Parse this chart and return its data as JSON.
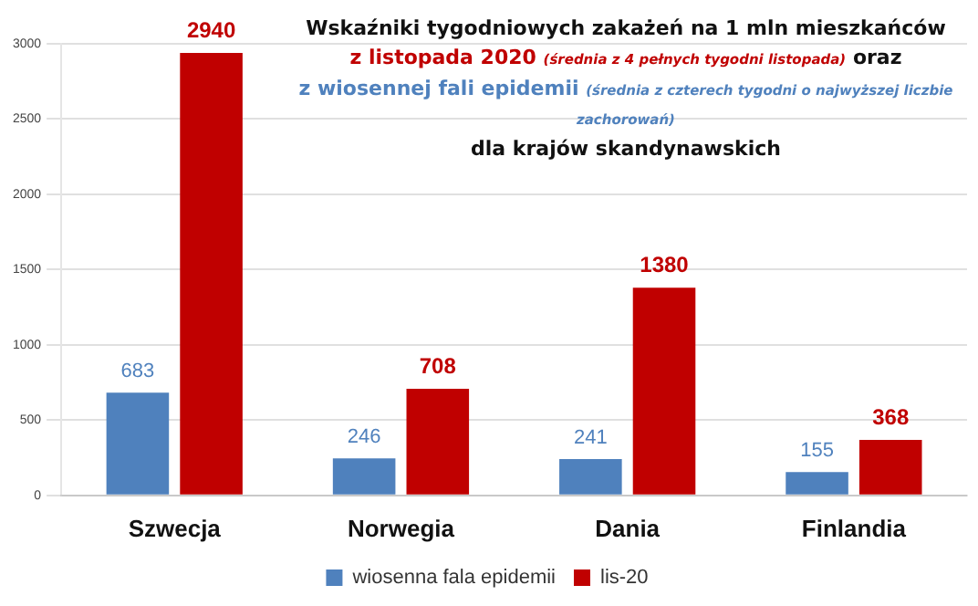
{
  "chart_data": {
    "type": "bar",
    "title": "Wskaźniki tygodniowych zakażeń na 1 mln mieszkańców",
    "subtitle": "z listopada 2020 (średnia z 4 pełnych tygodni listopada) oraz",
    "annotations": [
      "z wiosennej fali epidemii (średnia z czterech tygodni o najwyższej liczbie zachorowań)",
      "dla krajów skandynawskich"
    ],
    "categories": [
      "Szwecja",
      "Norwegia",
      "Dania",
      "Finlandia"
    ],
    "series": [
      {
        "name": "wiosenna fala epidemii",
        "color": "#4f81bd",
        "values": [
          683,
          246,
          241,
          155
        ]
      },
      {
        "name": "lis-20",
        "color": "#c00000",
        "values": [
          2940,
          708,
          1380,
          368
        ]
      }
    ],
    "ylim": [
      0,
      3000
    ],
    "yticks": [
      0,
      500,
      1000,
      1500,
      2000,
      2500,
      3000
    ],
    "grid": "y",
    "legend": "bottom",
    "data_labels": true
  }
}
